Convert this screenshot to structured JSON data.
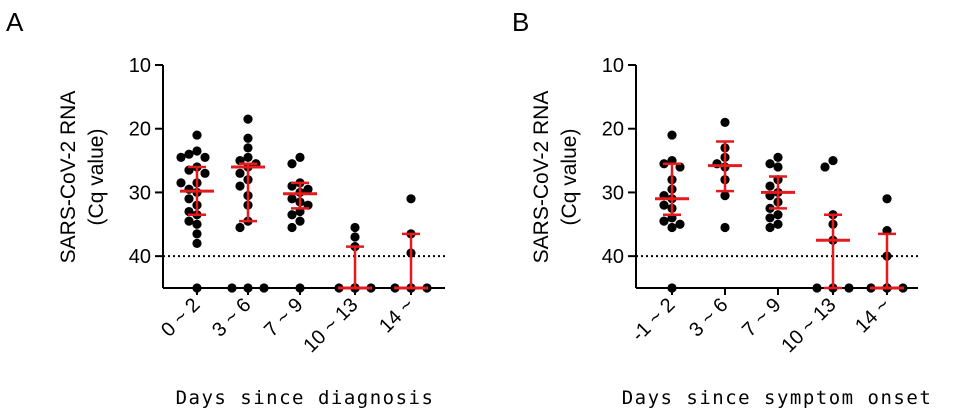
{
  "chart_data": [
    {
      "panel": "A",
      "type": "scatter",
      "xlabel": "Days since diagnosis",
      "ylabel": [
        "SARS-CoV-2 RNA",
        "(Cq value)"
      ],
      "yticks": [
        10,
        20,
        30,
        40
      ],
      "ylim": [
        10,
        45
      ],
      "y_inverted": true,
      "threshold": 40,
      "categories": [
        "0 ~ 2",
        "3 ~ 6",
        "7 ~ 9",
        "10 ~ 13",
        "14 ~"
      ],
      "medians": [
        29.8,
        26.0,
        30.2,
        45.0,
        45.0
      ],
      "iqr": [
        [
          33.5,
          26.0
        ],
        [
          34.5,
          25.5
        ],
        [
          32.5,
          28.5
        ],
        [
          45.0,
          38.5
        ],
        [
          45.0,
          36.5
        ]
      ],
      "points": [
        [
          21.0,
          23.5,
          24.0,
          24.5,
          24.5,
          26.0,
          26.5,
          27.0,
          28.5,
          28.5,
          29.5,
          30.0,
          31.0,
          32.0,
          33.0,
          33.5,
          34.5,
          35.0,
          36.5,
          38.0,
          45.0
        ],
        [
          18.5,
          21.5,
          23.0,
          24.5,
          25.0,
          25.5,
          26.0,
          27.0,
          28.0,
          29.0,
          30.5,
          32.0,
          34.5,
          35.5,
          45.0,
          45.0,
          45.0
        ],
        [
          24.5,
          25.5,
          28.5,
          29.0,
          29.5,
          30.0,
          31.0,
          31.5,
          32.0,
          33.0,
          33.5,
          34.5,
          35.5,
          45.0
        ],
        [
          35.5,
          37.0,
          38.5,
          45.0,
          45.0,
          45.0,
          45.0,
          45.0,
          45.0
        ],
        [
          31.0,
          36.5,
          39.5,
          45.0,
          45.0,
          45.0,
          45.0
        ]
      ]
    },
    {
      "panel": "B",
      "type": "scatter",
      "xlabel": "Days since symptom onset",
      "ylabel": [
        "SARS-CoV-2 RNA",
        "(Cq value)"
      ],
      "yticks": [
        10,
        20,
        30,
        40
      ],
      "ylim": [
        10,
        45
      ],
      "y_inverted": true,
      "threshold": 40,
      "categories": [
        "-1 ~ 2",
        "3 ~ 6",
        "7 ~ 9",
        "10 ~ 13",
        "14 ~"
      ],
      "medians": [
        31.0,
        25.8,
        30.0,
        37.5,
        45.0
      ],
      "iqr": [
        [
          33.5,
          25.5
        ],
        [
          29.8,
          22.0
        ],
        [
          32.5,
          27.5
        ],
        [
          45.0,
          33.5
        ],
        [
          45.0,
          36.5
        ]
      ],
      "points": [
        [
          21.0,
          25.0,
          25.5,
          26.0,
          28.0,
          29.5,
          30.5,
          31.0,
          32.0,
          32.5,
          34.0,
          34.5,
          35.0,
          35.5,
          45.0
        ],
        [
          19.0,
          23.0,
          24.5,
          25.5,
          26.0,
          28.0,
          30.5,
          35.5
        ],
        [
          24.5,
          25.5,
          26.0,
          28.0,
          29.0,
          30.0,
          30.5,
          31.5,
          32.5,
          33.5,
          34.0,
          35.0,
          35.5
        ],
        [
          25.0,
          26.0,
          33.5,
          35.0,
          37.5,
          45.0,
          45.0,
          45.0
        ],
        [
          31.0,
          36.0,
          40.0,
          45.0,
          45.0,
          45.0,
          45.0
        ]
      ]
    }
  ]
}
